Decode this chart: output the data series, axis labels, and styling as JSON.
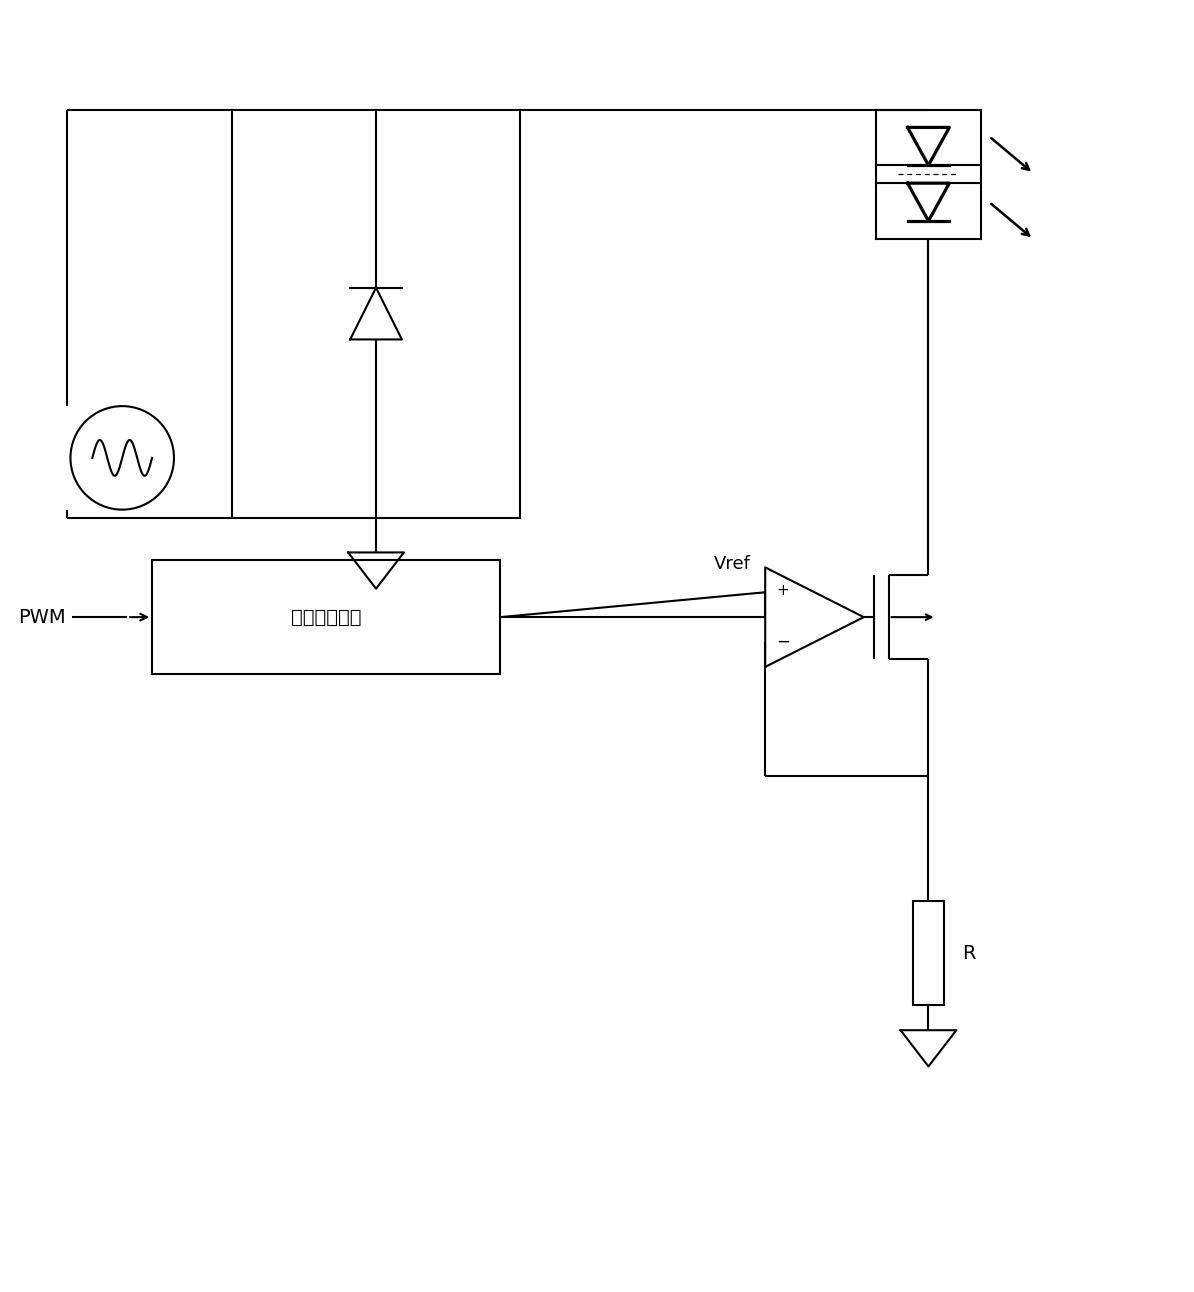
{
  "bg_color": "#ffffff",
  "line_color": "#000000",
  "lw": 1.5,
  "lw_thick": 2.2,
  "fig_width": 11.94,
  "fig_height": 12.92,
  "pwm_label": "PWM",
  "block_label": "基准产生单元",
  "vref_label": "Vref",
  "r_label": "R",
  "plus_label": "+",
  "minus_label": "−"
}
